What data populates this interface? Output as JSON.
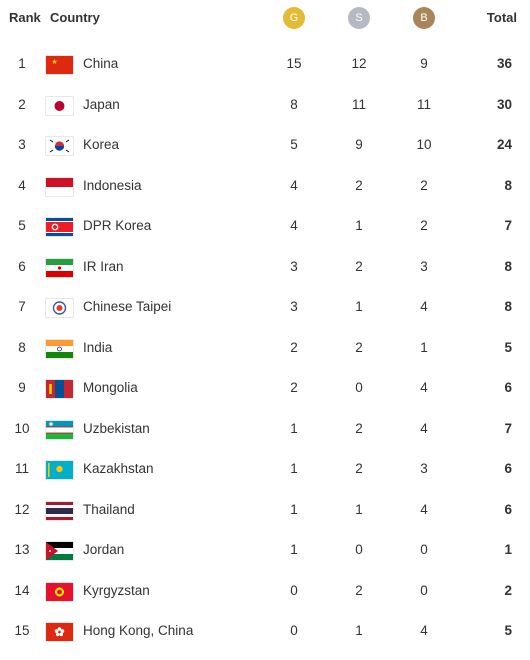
{
  "header": {
    "rank": "Rank",
    "country": "Country",
    "gold": "G",
    "silver": "S",
    "bronze": "B",
    "total": "Total"
  },
  "medal_colors": {
    "gold": "#e4bb35",
    "silver": "#b5b9c3",
    "bronze": "#a7865a"
  },
  "rows": [
    {
      "rank": "1",
      "country": "China",
      "flag_icon": "china-flag-icon",
      "gold": "15",
      "silver": "12",
      "bronze": "9",
      "total": "36"
    },
    {
      "rank": "2",
      "country": "Japan",
      "flag_icon": "japan-flag-icon",
      "gold": "8",
      "silver": "11",
      "bronze": "11",
      "total": "30"
    },
    {
      "rank": "3",
      "country": "Korea",
      "flag_icon": "korea-flag-icon",
      "gold": "5",
      "silver": "9",
      "bronze": "10",
      "total": "24"
    },
    {
      "rank": "4",
      "country": "Indonesia",
      "flag_icon": "indonesia-flag-icon",
      "gold": "4",
      "silver": "2",
      "bronze": "2",
      "total": "8"
    },
    {
      "rank": "5",
      "country": "DPR Korea",
      "flag_icon": "dpr-korea-flag-icon",
      "gold": "4",
      "silver": "1",
      "bronze": "2",
      "total": "7"
    },
    {
      "rank": "6",
      "country": "IR Iran",
      "flag_icon": "iran-flag-icon",
      "gold": "3",
      "silver": "2",
      "bronze": "3",
      "total": "8"
    },
    {
      "rank": "7",
      "country": "Chinese Taipei",
      "flag_icon": "chinese-taipei-flag-icon",
      "gold": "3",
      "silver": "1",
      "bronze": "4",
      "total": "8"
    },
    {
      "rank": "8",
      "country": "India",
      "flag_icon": "india-flag-icon",
      "gold": "2",
      "silver": "2",
      "bronze": "1",
      "total": "5"
    },
    {
      "rank": "9",
      "country": "Mongolia",
      "flag_icon": "mongolia-flag-icon",
      "gold": "2",
      "silver": "0",
      "bronze": "4",
      "total": "6"
    },
    {
      "rank": "10",
      "country": "Uzbekistan",
      "flag_icon": "uzbekistan-flag-icon",
      "gold": "1",
      "silver": "2",
      "bronze": "4",
      "total": "7"
    },
    {
      "rank": "11",
      "country": "Kazakhstan",
      "flag_icon": "kazakhstan-flag-icon",
      "gold": "1",
      "silver": "2",
      "bronze": "3",
      "total": "6"
    },
    {
      "rank": "12",
      "country": "Thailand",
      "flag_icon": "thailand-flag-icon",
      "gold": "1",
      "silver": "1",
      "bronze": "4",
      "total": "6"
    },
    {
      "rank": "13",
      "country": "Jordan",
      "flag_icon": "jordan-flag-icon",
      "gold": "1",
      "silver": "0",
      "bronze": "0",
      "total": "1"
    },
    {
      "rank": "14",
      "country": "Kyrgyzstan",
      "flag_icon": "kyrgyzstan-flag-icon",
      "gold": "0",
      "silver": "2",
      "bronze": "0",
      "total": "2"
    },
    {
      "rank": "15",
      "country": "Hong Kong, China",
      "flag_icon": "hong-kong-flag-icon",
      "gold": "0",
      "silver": "1",
      "bronze": "4",
      "total": "5"
    }
  ]
}
